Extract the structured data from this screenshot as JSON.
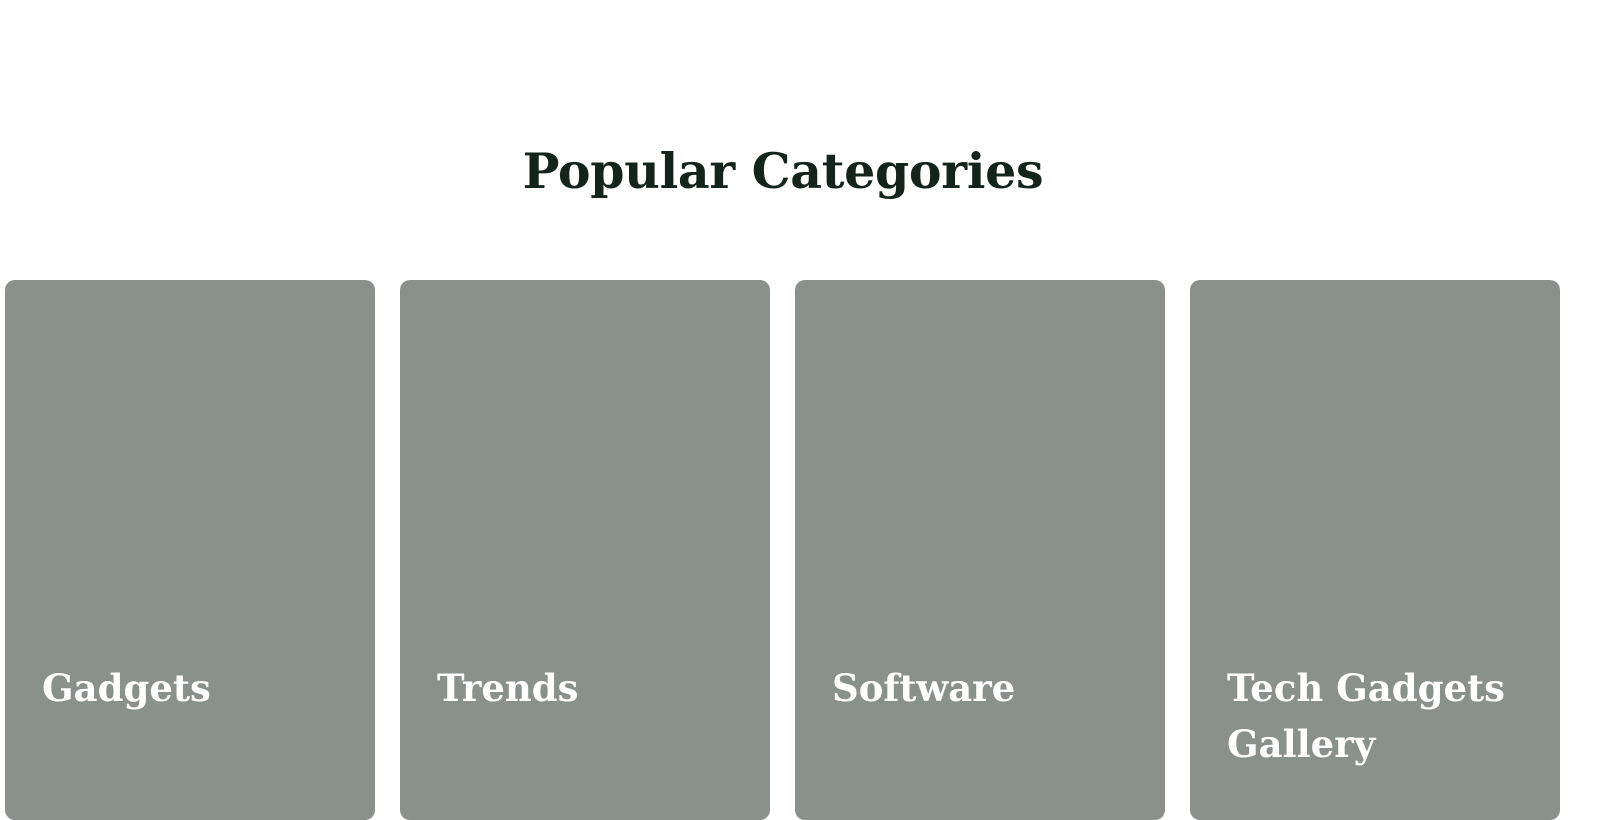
{
  "section": {
    "title": "Popular Categories"
  },
  "categories": [
    {
      "label": "Gadgets"
    },
    {
      "label": "Trends"
    },
    {
      "label": "Software"
    },
    {
      "label": "Tech Gadgets Gallery"
    }
  ],
  "colors": {
    "title_text": "#14241c",
    "card_background": "#8a918c",
    "card_text": "#ffffff",
    "page_background": "#ffffff"
  }
}
